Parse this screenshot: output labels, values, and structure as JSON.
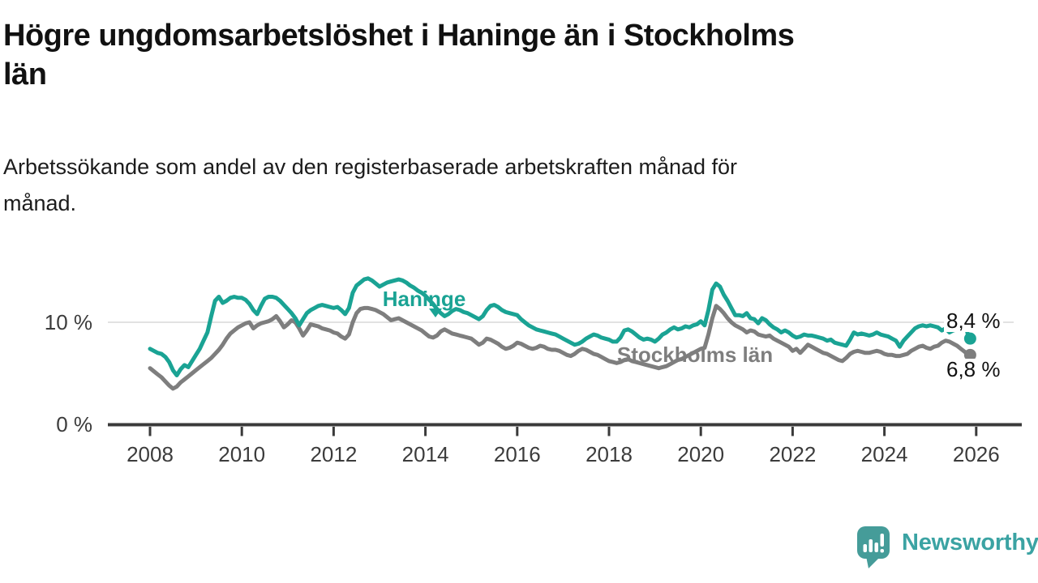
{
  "header": {
    "title_line1": "Högre ungdomsarbetslöshet i Haninge än i Stockholms",
    "title_line2": "län",
    "subtitle_line1": "Arbetssökande som andel av den registerbaserade arbetskraften månad för",
    "subtitle_line2": "månad."
  },
  "chart_data": {
    "type": "line",
    "title": "Högre ungdomsarbetslöshet i Haninge än i Stockholms län",
    "subtitle": "Arbetssökande som andel av den registerbaserade arbetskraften månad för månad.",
    "unit": "%",
    "x_start": "2008-01",
    "x_end": "2025-11",
    "x_interval": "monthly",
    "ylim": [
      0,
      15.5
    ],
    "grid": "horizontal line at 10% only",
    "legend_position": "inline labels on lines",
    "yticks": [
      {
        "value": 0,
        "label": "0 %"
      },
      {
        "value": 10,
        "label": "10 %"
      }
    ],
    "xticks": [
      2008,
      2010,
      2012,
      2014,
      2016,
      2018,
      2020,
      2022,
      2024,
      2026
    ],
    "series": [
      {
        "name": "Haninge",
        "color": "#1aa394",
        "end_label": "8,4 %",
        "end_value": 8.4,
        "values": [
          7.4,
          7.2,
          7.0,
          6.9,
          6.6,
          6.1,
          5.3,
          4.8,
          5.4,
          5.8,
          5.6,
          6.2,
          6.8,
          7.4,
          8.2,
          9.0,
          10.6,
          12.1,
          12.5,
          11.9,
          12.1,
          12.4,
          12.5,
          12.4,
          12.4,
          12.2,
          11.8,
          11.2,
          10.8,
          11.6,
          12.3,
          12.5,
          12.5,
          12.4,
          12.1,
          11.7,
          11.3,
          10.9,
          10.4,
          9.7,
          10.3,
          10.9,
          11.2,
          11.4,
          11.6,
          11.7,
          11.6,
          11.5,
          11.4,
          11.5,
          11.2,
          10.8,
          11.4,
          12.9,
          13.6,
          13.9,
          14.2,
          14.3,
          14.1,
          13.8,
          13.5,
          13.7,
          13.9,
          14.0,
          14.1,
          14.2,
          14.1,
          13.9,
          13.6,
          13.4,
          13.1,
          12.9,
          12.6,
          12.2,
          11.8,
          11.3,
          10.9,
          10.6,
          10.8,
          11.1,
          11.3,
          11.2,
          11.0,
          10.9,
          10.7,
          10.5,
          10.3,
          10.6,
          11.2,
          11.6,
          11.7,
          11.5,
          11.2,
          11.0,
          10.9,
          10.8,
          10.7,
          10.3,
          10.0,
          9.7,
          9.5,
          9.3,
          9.2,
          9.1,
          9.0,
          8.9,
          8.8,
          8.6,
          8.4,
          8.2,
          8.0,
          7.8,
          7.9,
          8.1,
          8.4,
          8.6,
          8.8,
          8.7,
          8.5,
          8.4,
          8.3,
          8.1,
          8.1,
          8.5,
          9.2,
          9.3,
          9.1,
          8.8,
          8.5,
          8.3,
          8.4,
          8.3,
          8.1,
          8.4,
          8.8,
          9.0,
          9.3,
          9.5,
          9.3,
          9.4,
          9.6,
          9.5,
          9.7,
          9.8,
          10.1,
          9.7,
          11.2,
          13.2,
          13.8,
          13.5,
          12.7,
          12.1,
          11.4,
          10.7,
          10.7,
          10.6,
          10.9,
          10.4,
          10.3,
          9.9,
          10.4,
          10.2,
          9.8,
          9.5,
          9.3,
          9.0,
          9.2,
          9.0,
          8.7,
          8.5,
          8.6,
          8.8,
          8.7,
          8.7,
          8.6,
          8.5,
          8.4,
          8.2,
          8.3,
          8.0,
          7.9,
          7.8,
          7.7,
          8.3,
          9.0,
          8.8,
          8.9,
          8.8,
          8.7,
          8.8,
          9.0,
          8.8,
          8.7,
          8.6,
          8.4,
          8.2,
          7.6,
          8.2,
          8.6,
          9.0,
          9.4,
          9.6,
          9.7,
          9.6,
          9.7,
          9.6,
          9.5,
          9.2,
          9.4,
          9.0,
          9.2,
          9.3,
          9.6,
          10.3,
          8.4
        ]
      },
      {
        "name": "Stockholms län",
        "color": "#7e7e7e",
        "end_label": "6,8 %",
        "end_value": 6.8,
        "values": [
          5.5,
          5.2,
          4.9,
          4.6,
          4.2,
          3.8,
          3.5,
          3.7,
          4.1,
          4.4,
          4.7,
          5.0,
          5.3,
          5.6,
          5.9,
          6.2,
          6.5,
          6.9,
          7.3,
          7.8,
          8.4,
          8.9,
          9.2,
          9.5,
          9.7,
          9.9,
          10.0,
          9.4,
          9.7,
          9.9,
          10.0,
          10.1,
          10.3,
          10.6,
          10.1,
          9.5,
          9.8,
          10.2,
          10.0,
          9.4,
          8.7,
          9.2,
          9.8,
          9.7,
          9.6,
          9.4,
          9.3,
          9.2,
          9.0,
          8.9,
          8.6,
          8.4,
          8.8,
          10.0,
          10.9,
          11.3,
          11.4,
          11.4,
          11.3,
          11.2,
          11.0,
          10.8,
          10.5,
          10.2,
          10.3,
          10.4,
          10.2,
          10.0,
          9.8,
          9.6,
          9.4,
          9.2,
          8.9,
          8.6,
          8.5,
          8.7,
          9.1,
          9.3,
          9.1,
          8.9,
          8.8,
          8.7,
          8.6,
          8.5,
          8.4,
          8.1,
          7.8,
          8.0,
          8.4,
          8.3,
          8.1,
          7.9,
          7.6,
          7.4,
          7.5,
          7.7,
          8.0,
          7.9,
          7.7,
          7.5,
          7.4,
          7.5,
          7.7,
          7.6,
          7.4,
          7.3,
          7.3,
          7.2,
          7.0,
          6.8,
          6.7,
          6.9,
          7.2,
          7.4,
          7.3,
          7.1,
          6.9,
          6.8,
          6.6,
          6.4,
          6.2,
          6.1,
          6.0,
          6.1,
          6.3,
          6.4,
          6.2,
          6.1,
          6.0,
          5.9,
          5.8,
          5.7,
          5.6,
          5.5,
          5.6,
          5.7,
          5.9,
          6.1,
          6.3,
          6.4,
          6.6,
          6.8,
          7.0,
          7.2,
          7.4,
          7.5,
          8.8,
          10.4,
          11.6,
          11.3,
          10.9,
          10.4,
          10.0,
          9.7,
          9.5,
          9.3,
          9.0,
          9.2,
          9.1,
          8.8,
          8.7,
          8.6,
          8.7,
          8.4,
          8.2,
          8.0,
          7.8,
          7.6,
          7.2,
          7.4,
          7.0,
          7.4,
          7.8,
          7.6,
          7.4,
          7.2,
          7.0,
          6.9,
          6.7,
          6.5,
          6.3,
          6.2,
          6.5,
          6.9,
          7.1,
          7.2,
          7.1,
          7.0,
          7.0,
          7.1,
          7.2,
          7.1,
          6.9,
          6.8,
          6.8,
          6.7,
          6.7,
          6.8,
          6.9,
          7.2,
          7.4,
          7.6,
          7.7,
          7.5,
          7.4,
          7.6,
          7.7,
          8.0,
          8.2,
          8.1,
          7.9,
          7.7,
          7.4,
          7.1,
          6.8
        ]
      }
    ]
  },
  "branding": {
    "wordmark": "Newsworthy"
  },
  "colors": {
    "haninge_line": "#1aa394",
    "stockholm_line": "#7e7e7e",
    "gridline": "#d8d8d8",
    "axis": "#3a3a3a",
    "logo_bubble": "#459c99",
    "logo_text": "#3ba3a3",
    "value_label_text": "#111111"
  }
}
